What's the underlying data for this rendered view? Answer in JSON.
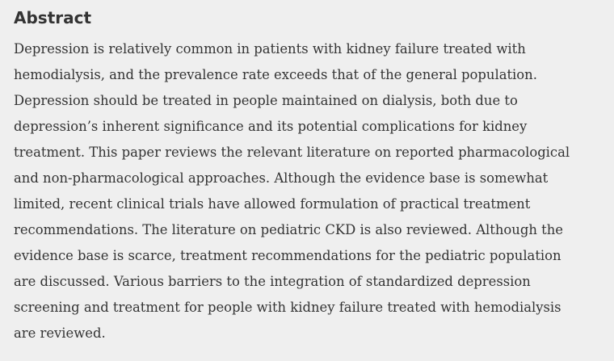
{
  "section": {
    "title": "Abstract",
    "lines": [
      "Depression is relatively common in patients with kidney failure treated with",
      "hemodialysis, and the prevalence rate exceeds that of the general population.",
      "Depression should be treated in people maintained on dialysis, both due to",
      "depression’s inherent significance and its potential complications for kidney",
      "treatment. This paper reviews the relevant literature on reported pharmacological",
      "and non-pharmacological approaches. Although the evidence base is somewhat",
      "limited, recent clinical trials have allowed formulation of practical treatment",
      "recommendations. The literature on pediatric CKD is also reviewed. Although the",
      "evidence base is scarce, treatment recommendations for the pediatric population",
      "are discussed. Various barriers to the integration of standardized depression",
      "screening and treatment for people with kidney failure treated with hemodialysis",
      "are reviewed."
    ]
  }
}
